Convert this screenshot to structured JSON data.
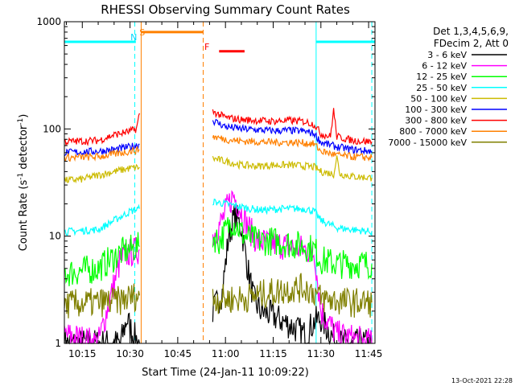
{
  "chart_data": {
    "type": "line",
    "title": "RHESSI Observing Summary Count Rates",
    "xlabel": "Start Time (24-Jan-11 10:09:22)",
    "ylabel": "Count Rate (s",
    "ylabel_sup1": "-1",
    "ylabel_mid": " detector",
    "ylabel_sup2": "-1",
    "ylabel_end": ")",
    "y_scale": "log",
    "ylim": [
      1,
      1000
    ],
    "xlim": [
      "10:09:22",
      "11:47:00"
    ],
    "x_ticks": [
      "10:15",
      "10:30",
      "10:45",
      "11:00",
      "11:15",
      "11:30",
      "11:45"
    ],
    "y_ticks": [
      "1",
      "10",
      "100",
      "1000"
    ],
    "grid": false,
    "legend_position": "right",
    "legend_header": [
      "Det 1,3,4,5,6,9,",
      "FDecim 2, Att 0"
    ],
    "footer_timestamp": "13-Oct-2021 22:28",
    "colors": {
      "background": "#ffffff",
      "axes": "#000000"
    },
    "annotations": [
      {
        "text": "N",
        "x": "10:31:10",
        "color": "#00d8ff"
      },
      {
        "text": "S",
        "x": "10:33:50",
        "color": "#ff8000"
      },
      {
        "text": "F",
        "x": "10:54:10",
        "color": "#ff0000"
      }
    ],
    "state_bars": [
      {
        "name": "night",
        "color": "#00ffff",
        "y": 650,
        "x": [
          [
            "10:09:22",
            "10:31:50"
          ],
          [
            "11:28:30",
            "11:47:00"
          ]
        ]
      },
      {
        "name": "saa",
        "color": "#ff8000",
        "y": 800,
        "x": [
          [
            "10:33:30",
            "10:53:00"
          ]
        ]
      },
      {
        "name": "flare",
        "color": "#ff0000",
        "y": 530,
        "x": [
          [
            "10:58:00",
            "11:06:00"
          ]
        ]
      }
    ],
    "vertical_markers": [
      {
        "x": "10:31:30",
        "color": "#00ffff",
        "style": "dashed"
      },
      {
        "x": "10:33:30",
        "color": "#ff8000",
        "style": "solid"
      },
      {
        "x": "10:53:00",
        "color": "#ff8000",
        "style": "dashed"
      },
      {
        "x": "11:28:30",
        "color": "#00ffff",
        "style": "solid"
      },
      {
        "x": "11:46:00",
        "color": "#00ffff",
        "style": "dashed"
      }
    ],
    "series": [
      {
        "name": "3 - 6 keV",
        "color": "#000000",
        "segments": [
          [
            [
              "10:09:22",
              1
            ],
            [
              "10:27:00",
              1
            ],
            [
              "10:29:00",
              1.7
            ],
            [
              "10:31:00",
              1.2
            ],
            [
              "10:33:00",
              1
            ]
          ],
          [
            [
              "10:56:00",
              2.0
            ],
            [
              "10:59:00",
              3
            ],
            [
              "11:01:00",
              10
            ],
            [
              "11:03:00",
              16
            ],
            [
              "11:05:00",
              12
            ],
            [
              "11:07:00",
              5
            ],
            [
              "11:09:00",
              2.5
            ],
            [
              "11:11:00",
              2
            ],
            [
              "11:15:00",
              1.8
            ],
            [
              "11:20:00",
              1.5
            ],
            [
              "11:25:00",
              1.2
            ],
            [
              "11:28:00",
              1.6
            ],
            [
              "11:30:00",
              1.7
            ],
            [
              "11:35:00",
              1
            ],
            [
              "11:46:00",
              1
            ]
          ]
        ]
      },
      {
        "name": "6 - 12 keV",
        "color": "#ff00ff",
        "segments": [
          [
            [
              "10:09:22",
              1.2
            ],
            [
              "10:20:00",
              1
            ],
            [
              "10:27:00",
              6
            ],
            [
              "10:30:00",
              7
            ],
            [
              "10:33:00",
              7.5
            ]
          ],
          [
            [
              "10:56:00",
              10
            ],
            [
              "10:59:00",
              14
            ],
            [
              "11:01:00",
              20
            ],
            [
              "11:02:30",
              24
            ],
            [
              "11:04:00",
              20
            ],
            [
              "11:06:00",
              14
            ],
            [
              "11:08:00",
              11
            ],
            [
              "11:10:00",
              9
            ],
            [
              "11:15:00",
              8.5
            ],
            [
              "11:20:00",
              8
            ],
            [
              "11:25:00",
              7.5
            ],
            [
              "11:28:00",
              7
            ],
            [
              "11:30:00",
              2
            ],
            [
              "11:35:00",
              1.2
            ],
            [
              "11:46:00",
              1
            ]
          ]
        ]
      },
      {
        "name": "12 - 25 keV",
        "color": "#00ff00",
        "segments": [
          [
            [
              "10:09:22",
              4.5
            ],
            [
              "10:20:00",
              5
            ],
            [
              "10:27:00",
              7
            ],
            [
              "10:30:00",
              7.5
            ],
            [
              "10:33:00",
              8
            ]
          ],
          [
            [
              "10:56:00",
              10
            ],
            [
              "10:58:00",
              9
            ],
            [
              "11:00:00",
              11
            ],
            [
              "11:02:00",
              14
            ],
            [
              "11:04:00",
              12
            ],
            [
              "11:06:00",
              10
            ],
            [
              "11:10:00",
              9
            ],
            [
              "11:15:00",
              9
            ],
            [
              "11:20:00",
              8.5
            ],
            [
              "11:25:00",
              8
            ],
            [
              "11:28:00",
              7.5
            ],
            [
              "11:30:00",
              6
            ],
            [
              "11:35:00",
              5.5
            ],
            [
              "11:46:00",
              5.5
            ]
          ]
        ]
      },
      {
        "name": "25 - 50 keV",
        "color": "#00ffff",
        "segments": [
          [
            [
              "10:09:22",
              11
            ],
            [
              "10:20:00",
              11.5
            ],
            [
              "10:25:00",
              14
            ],
            [
              "10:30:00",
              17
            ],
            [
              "10:33:00",
              18
            ]
          ],
          [
            [
              "10:56:00",
              21
            ],
            [
              "11:00:00",
              20
            ],
            [
              "11:04:00",
              19
            ],
            [
              "11:08:00",
              18
            ],
            [
              "11:12:00",
              17.5
            ],
            [
              "11:18:00",
              18
            ],
            [
              "11:25:00",
              18
            ],
            [
              "11:28:00",
              17
            ],
            [
              "11:30:00",
              14
            ],
            [
              "11:35:00",
              12
            ],
            [
              "11:40:00",
              11.5
            ],
            [
              "11:46:00",
              11
            ]
          ]
        ]
      },
      {
        "name": "50 - 100 keV",
        "color": "#ccbb00",
        "segments": [
          [
            [
              "10:09:22",
              33
            ],
            [
              "10:15:00",
              34
            ],
            [
              "10:20:00",
              37
            ],
            [
              "10:25:00",
              40
            ],
            [
              "10:30:00",
              43
            ],
            [
              "10:33:00",
              44
            ]
          ],
          [
            [
              "10:56:00",
              53
            ],
            [
              "11:00:00",
              50
            ],
            [
              "11:05:00",
              46
            ],
            [
              "11:10:00",
              45
            ],
            [
              "11:15:00",
              46
            ],
            [
              "11:20:00",
              46
            ],
            [
              "11:25:00",
              45
            ],
            [
              "11:28:00",
              44
            ],
            [
              "11:30:00",
              40
            ],
            [
              "11:32:00",
              39
            ],
            [
              "11:34:00",
              38
            ],
            [
              "11:35:00",
              55
            ],
            [
              "11:36:00",
              38
            ],
            [
              "11:40:00",
              36
            ],
            [
              "11:46:00",
              35
            ]
          ]
        ]
      },
      {
        "name": "100 - 300 keV",
        "color": "#0000ff",
        "segments": [
          [
            [
              "10:09:22",
              60
            ],
            [
              "10:20:00",
              62
            ],
            [
              "10:25:00",
              64
            ],
            [
              "10:30:00",
              68
            ],
            [
              "10:33:00",
              72
            ]
          ],
          [
            [
              "10:56:00",
              120
            ],
            [
              "11:00:00",
              105
            ],
            [
              "11:05:00",
              100
            ],
            [
              "11:10:00",
              98
            ],
            [
              "11:15:00",
              96
            ],
            [
              "11:20:00",
              97
            ],
            [
              "11:25:00",
              95
            ],
            [
              "11:28:00",
              90
            ],
            [
              "11:30:00",
              75
            ],
            [
              "11:35:00",
              68
            ],
            [
              "11:40:00",
              64
            ],
            [
              "11:46:00",
              62
            ]
          ]
        ]
      },
      {
        "name": "300 - 800 keV",
        "color": "#ff0000",
        "segments": [
          [
            [
              "10:09:22",
              76
            ],
            [
              "10:20:00",
              78
            ],
            [
              "10:25:00",
              88
            ],
            [
              "10:30:00",
              95
            ],
            [
              "10:32:00",
              100
            ],
            [
              "10:33:00",
              140
            ]
          ],
          [
            [
              "10:56:00",
              145
            ],
            [
              "11:00:00",
              128
            ],
            [
              "11:05:00",
              122
            ],
            [
              "11:10:00",
              120
            ],
            [
              "11:15:00",
              118
            ],
            [
              "11:20:00",
              120
            ],
            [
              "11:25:00",
              117
            ],
            [
              "11:28:00",
              110
            ],
            [
              "11:30:00",
              90
            ],
            [
              "11:33:00",
              85
            ],
            [
              "11:34:00",
              150
            ],
            [
              "11:35:00",
              85
            ],
            [
              "11:40:00",
              78
            ],
            [
              "11:46:00",
              76
            ]
          ]
        ]
      },
      {
        "name": "800 - 7000 keV",
        "color": "#ff8000",
        "segments": [
          [
            [
              "10:09:22",
              54
            ],
            [
              "10:20:00",
              55
            ],
            [
              "10:25:00",
              58
            ],
            [
              "10:30:00",
              62
            ],
            [
              "10:33:00",
              64
            ]
          ],
          [
            [
              "10:56:00",
              85
            ],
            [
              "11:00:00",
              80
            ],
            [
              "11:05:00",
              77
            ],
            [
              "11:10:00",
              76
            ],
            [
              "11:15:00",
              75
            ],
            [
              "11:20:00",
              75
            ],
            [
              "11:25:00",
              74
            ],
            [
              "11:28:00",
              72
            ],
            [
              "11:30:00",
              62
            ],
            [
              "11:35:00",
              57
            ],
            [
              "11:40:00",
              55
            ],
            [
              "11:46:00",
              54
            ]
          ]
        ]
      },
      {
        "name": "7000 - 15000 keV",
        "color": "#808000",
        "segments": [
          [
            [
              "10:09:22",
              2.3
            ],
            [
              "10:20:00",
              2.4
            ],
            [
              "10:27:00",
              2.5
            ],
            [
              "10:30:00",
              2.7
            ],
            [
              "10:33:00",
              2.8
            ]
          ],
          [
            [
              "10:56:00",
              2.6
            ],
            [
              "11:00:00",
              2.6
            ],
            [
              "11:05:00",
              2.6
            ],
            [
              "11:10:00",
              2.8
            ],
            [
              "11:15:00",
              3.0
            ],
            [
              "11:20:00",
              3.2
            ],
            [
              "11:25:00",
              3.3
            ],
            [
              "11:28:00",
              3.0
            ],
            [
              "11:30:00",
              2.6
            ],
            [
              "11:35:00",
              2.5
            ],
            [
              "11:40:00",
              2.4
            ],
            [
              "11:46:00",
              2.4
            ]
          ]
        ]
      }
    ]
  }
}
